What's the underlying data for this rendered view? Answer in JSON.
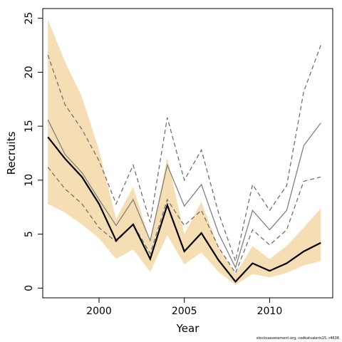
{
  "chart_data": {
    "type": "line",
    "xlabel": "Year",
    "ylabel": "Recruits",
    "xlim": [
      1996.7,
      2013.7
    ],
    "ylim": [
      -0.9,
      25.9
    ],
    "x_ticks": [
      2000,
      2005,
      2010
    ],
    "y_ticks": [
      0,
      5,
      10,
      15,
      20,
      25
    ],
    "grid": false,
    "x": [
      1997,
      1998,
      1999,
      2000,
      2001,
      2002,
      2003,
      2004,
      2005,
      2006,
      2007,
      2008,
      2009,
      2010,
      2011,
      2012,
      2013
    ],
    "series": [
      {
        "role": "interval",
        "color": "#f5deb3",
        "upper": [
          24.9,
          21.0,
          17.7,
          12.8,
          6.4,
          9.4,
          4.3,
          12.1,
          5.0,
          8.0,
          3.8,
          1.3,
          3.9,
          2.7,
          3.9,
          5.6,
          7.4
        ],
        "lower": [
          7.8,
          7.0,
          5.9,
          4.6,
          2.7,
          3.6,
          1.5,
          4.9,
          2.2,
          3.3,
          1.5,
          0.3,
          1.3,
          1.0,
          1.4,
          2.1,
          2.5
        ]
      },
      {
        "role": "estimate",
        "color": "#000000",
        "values": [
          14.0,
          12.0,
          10.3,
          7.8,
          4.4,
          5.9,
          2.7,
          7.7,
          3.4,
          5.1,
          2.6,
          0.6,
          2.3,
          1.6,
          2.3,
          3.4,
          4.2
        ]
      },
      {
        "role": "comparison",
        "color": "#808080",
        "values": [
          15.6,
          12.4,
          10.7,
          8.2,
          5.8,
          8.2,
          4.4,
          11.4,
          7.6,
          9.6,
          5.1,
          1.9,
          7.2,
          5.4,
          7.2,
          13.2,
          15.3
        ]
      },
      {
        "role": "comparison-upper",
        "color": "#707070",
        "dashed": true,
        "values": [
          21.6,
          17.0,
          14.7,
          11.8,
          7.8,
          11.4,
          6.1,
          15.8,
          10.0,
          12.8,
          7.0,
          2.5,
          9.6,
          7.2,
          9.5,
          18.2,
          22.5
        ]
      },
      {
        "role": "comparison-lower",
        "color": "#707070",
        "dashed": true,
        "values": [
          11.2,
          9.2,
          7.8,
          5.6,
          4.3,
          5.9,
          3.2,
          8.2,
          5.8,
          7.2,
          3.8,
          1.4,
          5.4,
          4.0,
          5.4,
          9.9,
          10.3
        ]
      }
    ]
  },
  "footer": {
    "note": "stocksassessment.org, codkatvaleris15, r4636"
  }
}
